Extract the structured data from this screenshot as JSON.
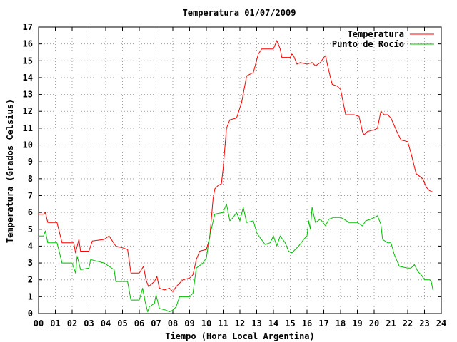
{
  "chart_data": {
    "type": "line",
    "title": "Temperatura 01/07/2009",
    "xlabel": "Tiempo (Hora Local Argentina)",
    "ylabel": "Temperatura (Grados Celsius)",
    "xlim": [
      0,
      24
    ],
    "ylim": [
      0,
      17
    ],
    "x_ticks": [
      "00",
      "01",
      "02",
      "03",
      "04",
      "05",
      "06",
      "07",
      "08",
      "09",
      "10",
      "11",
      "12",
      "13",
      "14",
      "15",
      "16",
      "17",
      "18",
      "19",
      "20",
      "21",
      "22",
      "23",
      "24"
    ],
    "y_ticks": [
      "0",
      "1",
      "2",
      "3",
      "4",
      "5",
      "6",
      "7",
      "8",
      "9",
      "10",
      "11",
      "12",
      "13",
      "14",
      "15",
      "16",
      "17"
    ],
    "grid": true,
    "legend_position": "top-right",
    "series": [
      {
        "name": "Temperatura",
        "color": "#ff0000",
        "points": [
          [
            0.0,
            5.9
          ],
          [
            0.3,
            5.9
          ],
          [
            0.4,
            6.0
          ],
          [
            0.55,
            5.4
          ],
          [
            1.1,
            5.4
          ],
          [
            1.4,
            4.2
          ],
          [
            2.1,
            4.2
          ],
          [
            2.2,
            3.6
          ],
          [
            2.4,
            4.4
          ],
          [
            2.5,
            3.7
          ],
          [
            3.0,
            3.7
          ],
          [
            3.2,
            4.3
          ],
          [
            3.9,
            4.4
          ],
          [
            4.2,
            4.6
          ],
          [
            4.4,
            4.3
          ],
          [
            4.6,
            4.0
          ],
          [
            5.0,
            3.9
          ],
          [
            5.3,
            3.8
          ],
          [
            5.5,
            2.4
          ],
          [
            6.0,
            2.4
          ],
          [
            6.25,
            2.8
          ],
          [
            6.4,
            2.0
          ],
          [
            6.55,
            1.6
          ],
          [
            6.9,
            1.9
          ],
          [
            7.05,
            2.2
          ],
          [
            7.2,
            1.5
          ],
          [
            7.5,
            1.4
          ],
          [
            7.8,
            1.5
          ],
          [
            8.0,
            1.3
          ],
          [
            8.2,
            1.6
          ],
          [
            8.4,
            1.8
          ],
          [
            8.6,
            2.0
          ],
          [
            9.0,
            2.1
          ],
          [
            9.2,
            2.3
          ],
          [
            9.4,
            3.2
          ],
          [
            9.6,
            3.7
          ],
          [
            10.0,
            3.8
          ],
          [
            10.2,
            4.5
          ],
          [
            10.4,
            6.8
          ],
          [
            10.5,
            7.4
          ],
          [
            10.7,
            7.6
          ],
          [
            10.9,
            7.7
          ],
          [
            11.0,
            8.6
          ],
          [
            11.2,
            11.0
          ],
          [
            11.4,
            11.5
          ],
          [
            11.8,
            11.6
          ],
          [
            12.1,
            12.5
          ],
          [
            12.4,
            14.1
          ],
          [
            12.8,
            14.3
          ],
          [
            13.1,
            15.4
          ],
          [
            13.3,
            15.7
          ],
          [
            14.0,
            15.7
          ],
          [
            14.2,
            16.2
          ],
          [
            14.4,
            15.7
          ],
          [
            14.5,
            15.2
          ],
          [
            15.0,
            15.2
          ],
          [
            15.1,
            15.4
          ],
          [
            15.2,
            15.3
          ],
          [
            15.4,
            14.8
          ],
          [
            15.6,
            14.9
          ],
          [
            16.0,
            14.8
          ],
          [
            16.3,
            14.9
          ],
          [
            16.5,
            14.7
          ],
          [
            16.8,
            14.9
          ],
          [
            17.0,
            15.2
          ],
          [
            17.1,
            15.3
          ],
          [
            17.3,
            14.4
          ],
          [
            17.5,
            13.6
          ],
          [
            17.8,
            13.5
          ],
          [
            18.0,
            13.3
          ],
          [
            18.3,
            11.8
          ],
          [
            18.8,
            11.8
          ],
          [
            19.1,
            11.7
          ],
          [
            19.3,
            10.8
          ],
          [
            19.4,
            10.6
          ],
          [
            19.6,
            10.8
          ],
          [
            20.0,
            10.9
          ],
          [
            20.2,
            11.0
          ],
          [
            20.4,
            12.0
          ],
          [
            20.6,
            11.8
          ],
          [
            20.8,
            11.8
          ],
          [
            21.0,
            11.6
          ],
          [
            21.4,
            10.7
          ],
          [
            21.6,
            10.3
          ],
          [
            22.0,
            10.2
          ],
          [
            22.2,
            9.5
          ],
          [
            22.5,
            8.3
          ],
          [
            22.9,
            8.0
          ],
          [
            23.1,
            7.5
          ],
          [
            23.3,
            7.3
          ],
          [
            23.5,
            7.2
          ]
        ]
      },
      {
        "name": "Punto de Rocío",
        "color": "#00c000",
        "points": [
          [
            0.0,
            4.6
          ],
          [
            0.3,
            4.6
          ],
          [
            0.4,
            4.9
          ],
          [
            0.55,
            4.2
          ],
          [
            1.1,
            4.2
          ],
          [
            1.4,
            3.0
          ],
          [
            2.0,
            3.0
          ],
          [
            2.2,
            2.4
          ],
          [
            2.3,
            3.4
          ],
          [
            2.5,
            2.6
          ],
          [
            3.0,
            2.7
          ],
          [
            3.1,
            3.2
          ],
          [
            3.5,
            3.1
          ],
          [
            3.9,
            3.0
          ],
          [
            4.2,
            2.8
          ],
          [
            4.5,
            2.6
          ],
          [
            4.6,
            1.9
          ],
          [
            5.0,
            1.9
          ],
          [
            5.3,
            1.9
          ],
          [
            5.5,
            0.8
          ],
          [
            6.0,
            0.8
          ],
          [
            6.2,
            1.5
          ],
          [
            6.35,
            0.7
          ],
          [
            6.5,
            0.1
          ],
          [
            6.6,
            0.4
          ],
          [
            6.9,
            0.6
          ],
          [
            7.0,
            1.1
          ],
          [
            7.2,
            0.3
          ],
          [
            7.6,
            0.2
          ],
          [
            7.8,
            0.1
          ],
          [
            8.0,
            0.2
          ],
          [
            8.2,
            0.4
          ],
          [
            8.4,
            1.0
          ],
          [
            9.0,
            1.0
          ],
          [
            9.2,
            1.2
          ],
          [
            9.4,
            2.7
          ],
          [
            9.8,
            3.0
          ],
          [
            10.0,
            3.3
          ],
          [
            10.2,
            4.6
          ],
          [
            10.5,
            5.9
          ],
          [
            11.0,
            6.0
          ],
          [
            11.2,
            6.5
          ],
          [
            11.4,
            5.5
          ],
          [
            11.6,
            5.7
          ],
          [
            11.8,
            6.0
          ],
          [
            12.0,
            5.5
          ],
          [
            12.2,
            6.3
          ],
          [
            12.4,
            5.4
          ],
          [
            12.8,
            5.5
          ],
          [
            13.0,
            4.8
          ],
          [
            13.2,
            4.5
          ],
          [
            13.5,
            4.1
          ],
          [
            13.8,
            4.2
          ],
          [
            14.0,
            4.6
          ],
          [
            14.2,
            4.0
          ],
          [
            14.4,
            4.6
          ],
          [
            14.7,
            4.2
          ],
          [
            14.9,
            3.7
          ],
          [
            15.1,
            3.6
          ],
          [
            15.3,
            3.8
          ],
          [
            15.5,
            4.0
          ],
          [
            15.8,
            4.4
          ],
          [
            16.0,
            4.6
          ],
          [
            16.1,
            5.5
          ],
          [
            16.2,
            5.0
          ],
          [
            16.3,
            6.3
          ],
          [
            16.5,
            5.4
          ],
          [
            16.8,
            5.6
          ],
          [
            17.1,
            5.2
          ],
          [
            17.3,
            5.6
          ],
          [
            17.6,
            5.7
          ],
          [
            18.0,
            5.7
          ],
          [
            18.2,
            5.6
          ],
          [
            18.5,
            5.4
          ],
          [
            19.0,
            5.4
          ],
          [
            19.3,
            5.2
          ],
          [
            19.5,
            5.5
          ],
          [
            19.8,
            5.6
          ],
          [
            20.2,
            5.8
          ],
          [
            20.4,
            5.3
          ],
          [
            20.5,
            4.4
          ],
          [
            20.8,
            4.2
          ],
          [
            21.0,
            4.2
          ],
          [
            21.2,
            3.5
          ],
          [
            21.5,
            2.8
          ],
          [
            22.0,
            2.7
          ],
          [
            22.2,
            2.7
          ],
          [
            22.4,
            2.9
          ],
          [
            22.6,
            2.5
          ],
          [
            22.8,
            2.3
          ],
          [
            23.0,
            2.0
          ],
          [
            23.3,
            2.0
          ],
          [
            23.4,
            1.9
          ],
          [
            23.5,
            1.4
          ]
        ]
      }
    ]
  }
}
